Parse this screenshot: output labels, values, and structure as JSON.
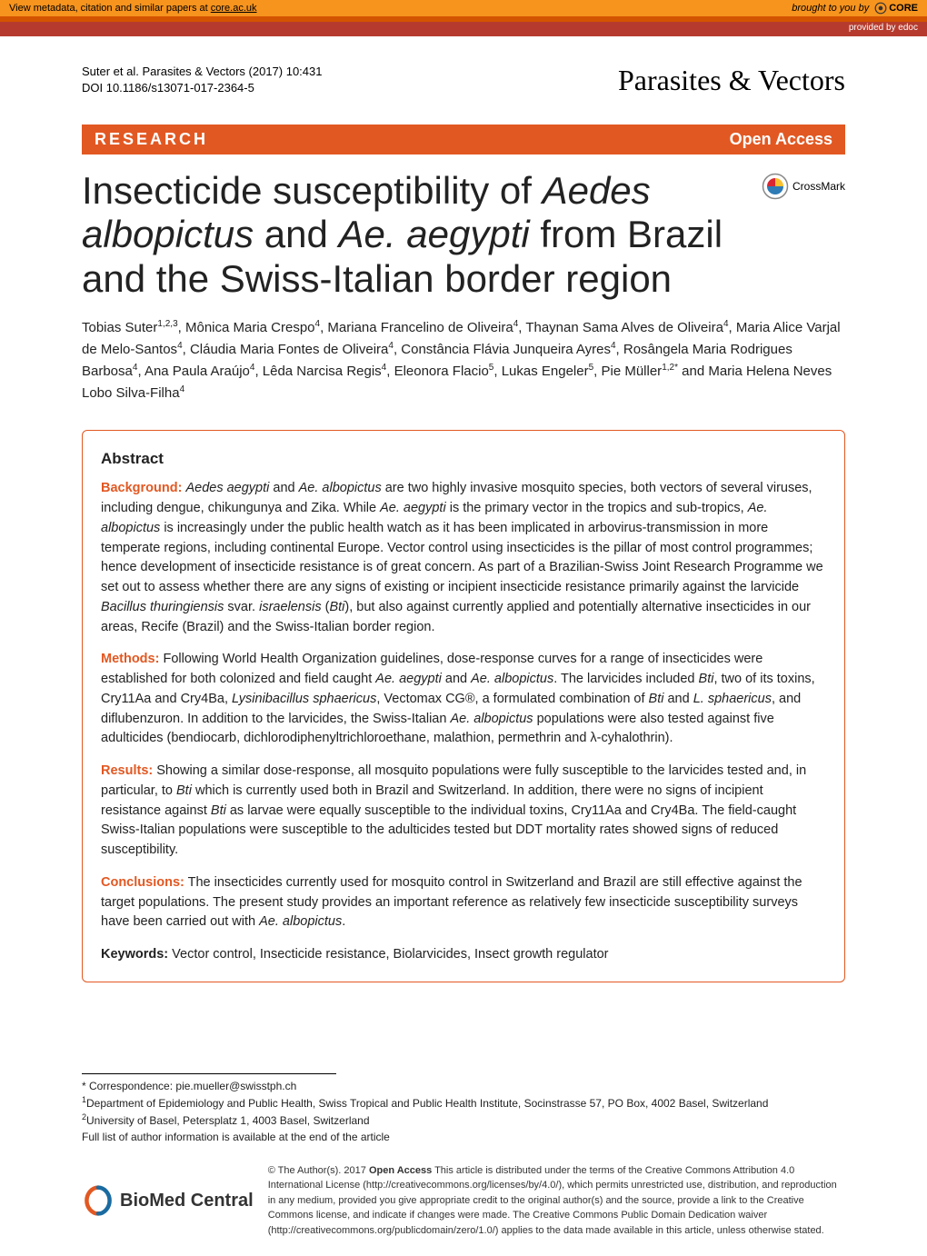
{
  "top_banner": {
    "prefix": "View metadata, citation and similar papers at ",
    "link_text": "core.ac.uk",
    "brought_by": "brought to you by",
    "core": "CORE"
  },
  "edoc": "provided by edoc",
  "citation": {
    "line1": "Suter et al. Parasites & Vectors  (2017) 10:431",
    "line2": "DOI 10.1186/s13071-017-2364-5"
  },
  "journal": "Parasites & Vectors",
  "research_bar": {
    "left": "RESEARCH",
    "right": "Open Access"
  },
  "crossmark": "CrossMark",
  "title": {
    "p1": "Insecticide susceptibility of ",
    "i1": "Aedes albopictus",
    "p2": " and ",
    "i2": "Ae. aegypti",
    "p3": " from Brazil and the Swiss-Italian border region"
  },
  "authors_html": "Tobias Suter<sup>1,2,3</sup>, Mônica Maria Crespo<sup>4</sup>, Mariana Francelino de Oliveira<sup>4</sup>, Thaynan Sama Alves de Oliveira<sup>4</sup>, Maria Alice Varjal de Melo-Santos<sup>4</sup>, Cláudia Maria Fontes de Oliveira<sup>4</sup>, Constância Flávia Junqueira Ayres<sup>4</sup>, Rosângela Maria Rodrigues Barbosa<sup>4</sup>, Ana Paula Araújo<sup>4</sup>, Lêda Narcisa Regis<sup>4</sup>, Eleonora Flacio<sup>5</sup>, Lukas Engeler<sup>5</sup>, Pie Müller<sup>1,2*</sup> and Maria Helena Neves Lobo Silva-Filha<sup>4</sup>",
  "abstract": {
    "title": "Abstract",
    "background": {
      "label": "Background:",
      "text": " <em>Aedes aegypti</em> and <em>Ae. albopictus</em> are two highly invasive mosquito species, both vectors of several viruses, including dengue, chikungunya and Zika. While <em>Ae. aegypti</em> is the primary vector in the tropics and sub-tropics, <em>Ae. albopictus</em> is increasingly under the public health watch as it has been implicated in arbovirus-transmission in more temperate regions, including continental Europe. Vector control using insecticides is the pillar of most control programmes; hence development of insecticide resistance is of great concern. As part of a Brazilian-Swiss Joint Research Programme we set out to assess whether there are any signs of existing or incipient insecticide resistance primarily against the larvicide <em>Bacillus thuringiensis</em> svar. <em>israelensis</em> (<em>Bti</em>), but also against currently applied and potentially alternative insecticides in our areas, Recife (Brazil) and the Swiss-Italian border region."
    },
    "methods": {
      "label": "Methods:",
      "text": " Following World Health Organization guidelines, dose-response curves for a range of insecticides were established for both colonized and field caught <em>Ae. aegypti</em> and <em>Ae. albopictus</em>. The larvicides included <em>Bti</em>, two of its toxins, Cry11Aa and Cry4Ba, <em>Lysinibacillus sphaericus</em>, Vectomax CG®, a formulated combination of <em>Bti</em> and <em>L. sphaericus</em>, and diflubenzuron. In addition to the larvicides, the Swiss-Italian <em>Ae. albopictus</em> populations were also tested against five adulticides (bendiocarb, dichlorodiphenyltrichloroethane, malathion, permethrin and λ-cyhalothrin)."
    },
    "results": {
      "label": "Results:",
      "text": " Showing a similar dose-response, all mosquito populations were fully susceptible to the larvicides tested and, in particular, to <em>Bti</em> which is currently used both in Brazil and Switzerland. In addition, there were no signs of incipient resistance against <em>Bti</em> as larvae were equally susceptible to the individual toxins, Cry11Aa and Cry4Ba. The field-caught Swiss-Italian populations were susceptible to the adulticides tested but DDT mortality rates showed signs of reduced susceptibility."
    },
    "conclusions": {
      "label": "Conclusions:",
      "text": " The insecticides currently used for mosquito control in Switzerland and Brazil are still effective against the target populations. The present study provides an important reference as relatively few insecticide susceptibility surveys have been carried out with <em>Ae. albopictus</em>."
    },
    "keywords": {
      "label": "Keywords:",
      "text": " Vector control, Insecticide resistance, Biolarvicides, Insect growth regulator"
    }
  },
  "footnotes_html": "* Correspondence: pie.mueller@swisstph.ch<br><sup>1</sup>Department of Epidemiology and Public Health, Swiss Tropical and Public Health Institute, Socinstrasse 57, PO Box, 4002 Basel, Switzerland<br><sup>2</sup>University of Basel, Petersplatz 1, 4003 Basel, Switzerland<br>Full list of author information is available at the end of the article",
  "footer": {
    "bmc": "BioMed Central",
    "license": "© The Author(s). 2017 <b>Open Access</b> This article is distributed under the terms of the Creative Commons Attribution 4.0 International License (http://creativecommons.org/licenses/by/4.0/), which permits unrestricted use, distribution, and reproduction in any medium, provided you give appropriate credit to the original author(s) and the source, provide a link to the Creative Commons license, and indicate if changes were made. The Creative Commons Public Domain Dedication waiver (http://creativecommons.org/publicdomain/zero/1.0/) applies to the data made available in this article, unless otherwise stated."
  },
  "colors": {
    "banner_bg": "#f7941e",
    "strip": "#d35400",
    "edoc": "#b63b2e",
    "accent": "#e25822"
  }
}
